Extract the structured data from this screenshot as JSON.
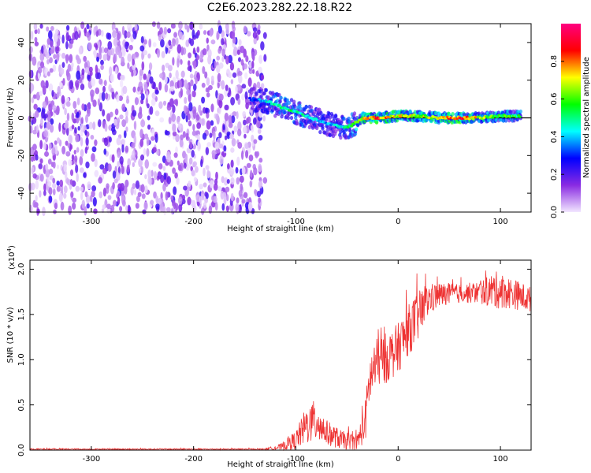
{
  "title": "C2E6.2023.282.22.18.R22",
  "chart_data": [
    {
      "type": "heatmap",
      "xlabel": "Height of straight line (km)",
      "ylabel": "Frequency (Hz)",
      "xlim": [
        -360,
        130
      ],
      "ylim": [
        -50,
        50
      ],
      "xticks": [
        -300,
        -200,
        -100,
        0,
        100
      ],
      "yticks": [
        -40,
        -20,
        0,
        20,
        40
      ],
      "colorbar": {
        "label": "Normalized spectral amplitude",
        "range": [
          0.0,
          1.0
        ],
        "ticks": [
          "0.0",
          "0.2",
          "0.4",
          "0.6",
          "0.8"
        ],
        "colors": [
          "#f2e6ff",
          "#8a2be2",
          "#0000ff",
          "#00ffff",
          "#00ff00",
          "#ffff00",
          "#ff0000",
          "#ff0080"
        ]
      },
      "line": {
        "x": [
          -30,
          130
        ],
        "y": [
          0,
          0
        ],
        "color": "#000000"
      },
      "noise_region": {
        "x_range": [
          -360,
          -130
        ],
        "amplitude": 0.15
      },
      "signal_track": [
        {
          "x": -145,
          "f": 10,
          "amp": 0.3
        },
        {
          "x": -130,
          "f": 9,
          "amp": 0.45
        },
        {
          "x": -115,
          "f": 6,
          "amp": 0.55
        },
        {
          "x": -100,
          "f": 3,
          "amp": 0.5
        },
        {
          "x": -85,
          "f": 0,
          "amp": 0.45
        },
        {
          "x": -70,
          "f": -3,
          "amp": 0.4
        },
        {
          "x": -55,
          "f": -5,
          "amp": 0.45
        },
        {
          "x": -45,
          "f": -4,
          "amp": 0.55
        },
        {
          "x": -35,
          "f": 0,
          "amp": 0.75
        },
        {
          "x": -20,
          "f": 0,
          "amp": 0.85
        },
        {
          "x": 0,
          "f": 1,
          "amp": 0.75
        },
        {
          "x": 20,
          "f": 1,
          "amp": 0.7
        },
        {
          "x": 40,
          "f": 0,
          "amp": 0.7
        },
        {
          "x": 60,
          "f": 0,
          "amp": 0.9
        },
        {
          "x": 80,
          "f": 0,
          "amp": 0.7
        },
        {
          "x": 100,
          "f": 1,
          "amp": 0.6
        },
        {
          "x": 120,
          "f": 1,
          "amp": 0.55
        }
      ]
    },
    {
      "type": "line",
      "xlabel": "Height of straight line (km)",
      "ylabel": "SNR (10 * v/v)",
      "multiplier_label": "(x10",
      "multiplier_exp": "4",
      "multiplier_close": ")",
      "xlim": [
        -360,
        130
      ],
      "ylim": [
        0.0,
        2.1
      ],
      "xticks": [
        -300,
        -200,
        -100,
        0,
        100
      ],
      "ytick_labels": [
        "0.0",
        "0.5",
        "1.0",
        "1.5",
        "2.0"
      ],
      "yticks": [
        0.0,
        0.5,
        1.0,
        1.5,
        2.0
      ],
      "series": [
        {
          "color": "#ee3333",
          "envelope": [
            {
              "x": -360,
              "base": 0.01,
              "spread": 0.01
            },
            {
              "x": -130,
              "base": 0.01,
              "spread": 0.01
            },
            {
              "x": -115,
              "base": 0.03,
              "spread": 0.05
            },
            {
              "x": -100,
              "base": 0.1,
              "spread": 0.15
            },
            {
              "x": -90,
              "base": 0.25,
              "spread": 0.3
            },
            {
              "x": -80,
              "base": 0.3,
              "spread": 0.35
            },
            {
              "x": -70,
              "base": 0.18,
              "spread": 0.2
            },
            {
              "x": -55,
              "base": 0.1,
              "spread": 0.15
            },
            {
              "x": -40,
              "base": 0.08,
              "spread": 0.12
            },
            {
              "x": -32,
              "base": 0.3,
              "spread": 0.35
            },
            {
              "x": -28,
              "base": 0.75,
              "spread": 0.4
            },
            {
              "x": -20,
              "base": 0.95,
              "spread": 0.4
            },
            {
              "x": -10,
              "base": 1.0,
              "spread": 0.4
            },
            {
              "x": 0,
              "base": 1.1,
              "spread": 0.4
            },
            {
              "x": 10,
              "base": 1.3,
              "spread": 0.4
            },
            {
              "x": 20,
              "base": 1.45,
              "spread": 0.4
            },
            {
              "x": 30,
              "base": 1.65,
              "spread": 0.25
            },
            {
              "x": 40,
              "base": 1.7,
              "spread": 0.2
            },
            {
              "x": 60,
              "base": 1.72,
              "spread": 0.15
            },
            {
              "x": 80,
              "base": 1.73,
              "spread": 0.18
            },
            {
              "x": 95,
              "base": 1.75,
              "spread": 0.3
            },
            {
              "x": 110,
              "base": 1.72,
              "spread": 0.25
            },
            {
              "x": 130,
              "base": 1.65,
              "spread": 0.2
            }
          ]
        }
      ]
    }
  ]
}
